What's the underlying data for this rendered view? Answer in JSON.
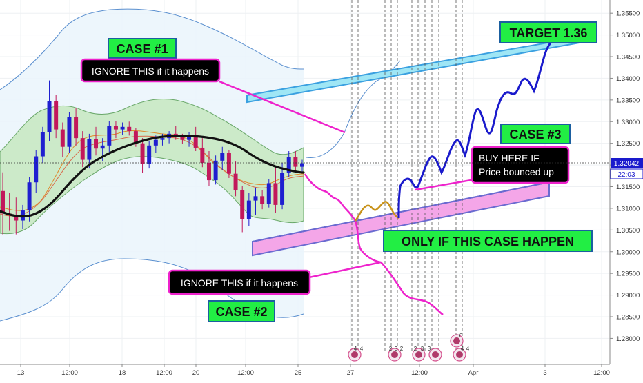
{
  "chart_data": {
    "type": "candlestick",
    "instrument_last_price": "1.32042",
    "countdown": "22:03",
    "x_ticks": [
      "13",
      "12:00",
      "18",
      "12:00",
      "20",
      "12:00",
      "25",
      "27",
      "12:00",
      "Apr",
      "3",
      "12:00"
    ],
    "y_ticks": [
      "1.35500",
      "1.35000",
      "1.34500",
      "1.34000",
      "1.33500",
      "1.33000",
      "1.32500",
      "1.32000",
      "1.31500",
      "1.31000",
      "1.30500",
      "1.30000",
      "1.29500",
      "1.29000",
      "1.28500",
      "1.28000"
    ],
    "ylim": [
      1.2772,
      1.3571
    ],
    "candles": [
      [
        1.314,
        1.3183,
        1.304,
        1.3088
      ],
      [
        1.3088,
        1.3135,
        1.3048,
        1.3085
      ],
      [
        1.3085,
        1.3125,
        1.304,
        1.3072
      ],
      [
        1.3072,
        1.3108,
        1.3052,
        1.3095
      ],
      [
        1.3095,
        1.3172,
        1.307,
        1.316
      ],
      [
        1.316,
        1.3235,
        1.3135,
        1.322
      ],
      [
        1.322,
        1.3288,
        1.3205,
        1.3275
      ],
      [
        1.3275,
        1.3395,
        1.3255,
        1.3348
      ],
      [
        1.3348,
        1.3362,
        1.3262,
        1.3282
      ],
      [
        1.3282,
        1.3298,
        1.3218,
        1.3242
      ],
      [
        1.3242,
        1.3322,
        1.3228,
        1.331
      ],
      [
        1.331,
        1.3332,
        1.3245,
        1.3262
      ],
      [
        1.3262,
        1.3278,
        1.3195,
        1.3212
      ],
      [
        1.3212,
        1.3272,
        1.3192,
        1.326
      ],
      [
        1.326,
        1.3288,
        1.3222,
        1.3238
      ],
      [
        1.3238,
        1.3262,
        1.3208,
        1.3245
      ],
      [
        1.3245,
        1.3302,
        1.323,
        1.329
      ],
      [
        1.329,
        1.3302,
        1.3262,
        1.3282
      ],
      [
        1.3282,
        1.3298,
        1.327,
        1.3288
      ],
      [
        1.3288,
        1.33,
        1.3268,
        1.3278
      ],
      [
        1.3278,
        1.3285,
        1.3242,
        1.325
      ],
      [
        1.325,
        1.3262,
        1.3182,
        1.3202
      ],
      [
        1.3202,
        1.3255,
        1.3192,
        1.3245
      ],
      [
        1.3245,
        1.3268,
        1.3228,
        1.3258
      ],
      [
        1.3258,
        1.3272,
        1.3245,
        1.3262
      ],
      [
        1.3262,
        1.3278,
        1.325,
        1.3272
      ],
      [
        1.3272,
        1.329,
        1.3258,
        1.3265
      ],
      [
        1.3265,
        1.3272,
        1.3248,
        1.3258
      ],
      [
        1.3258,
        1.3275,
        1.3242,
        1.327
      ],
      [
        1.327,
        1.3288,
        1.3232,
        1.324
      ],
      [
        1.324,
        1.3262,
        1.3195,
        1.3205
      ],
      [
        1.3205,
        1.3232,
        1.3152,
        1.3165
      ],
      [
        1.3165,
        1.3222,
        1.3155,
        1.321
      ],
      [
        1.321,
        1.3242,
        1.3188,
        1.3228
      ],
      [
        1.3228,
        1.3235,
        1.317,
        1.318
      ],
      [
        1.318,
        1.3208,
        1.3128,
        1.3142
      ],
      [
        1.3142,
        1.3152,
        1.3045,
        1.3075
      ],
      [
        1.3075,
        1.3135,
        1.306,
        1.3118
      ],
      [
        1.3118,
        1.3148,
        1.3085,
        1.3128
      ],
      [
        1.3128,
        1.3142,
        1.3098,
        1.311
      ],
      [
        1.311,
        1.3168,
        1.3102,
        1.3158
      ],
      [
        1.3158,
        1.3198,
        1.309,
        1.3108
      ],
      [
        1.3108,
        1.3205,
        1.3098,
        1.3182
      ],
      [
        1.3182,
        1.3232,
        1.3172,
        1.3218
      ],
      [
        1.3218,
        1.3232,
        1.3185,
        1.3196
      ],
      [
        1.3196,
        1.3212,
        1.3185,
        1.3204
      ]
    ],
    "annotations": {
      "case1": "CASE #1",
      "case2": "CASE #2",
      "case3": "CASE #3",
      "target": "TARGET 1.36",
      "ignore_top": "IGNORE THIS if it happens",
      "ignore_bottom": "IGNORE THIS if it happens",
      "only_if": "ONLY IF THIS CASE HAPPEN",
      "buy_line1": "BUY HERE IF",
      "buy_line2": "Price bounced up"
    },
    "event_icon_labels": [
      "4",
      "4",
      "2",
      "3",
      "2",
      "2",
      "3",
      "3",
      "4",
      "4",
      "6"
    ],
    "colors": {
      "bull": "#1f1fd0",
      "bear": "#c2185b",
      "sma": "#111111",
      "band_fill": "#b8e6b0",
      "outer_band_fill": "#e8f4fb",
      "channel_top": "#7fd6ee",
      "channel_bottom": "#f4a6e8",
      "green_box": "#22ee44",
      "path_pink": "#ee22cc",
      "path_orange": "#c8921a",
      "path_blue": "#1a1acc"
    }
  }
}
